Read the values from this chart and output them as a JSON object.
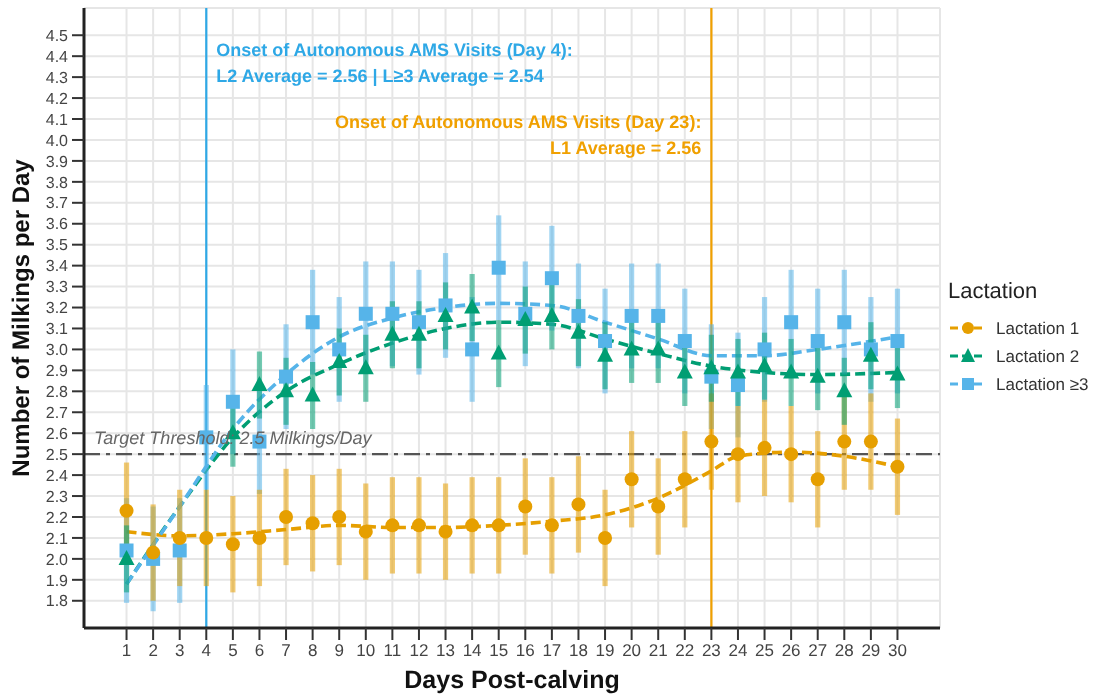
{
  "chart_data": {
    "type": "scatter",
    "xlabel": "Days Post-calving",
    "ylabel": "Number of Milkings per Day",
    "legend_title": "Lactation",
    "legend": "right",
    "grid": true,
    "x": [
      1,
      2,
      3,
      4,
      5,
      6,
      7,
      8,
      9,
      10,
      11,
      12,
      13,
      14,
      15,
      16,
      17,
      18,
      19,
      20,
      21,
      22,
      23,
      24,
      25,
      26,
      27,
      28,
      29,
      30
    ],
    "xlim": [
      -0.6,
      31.6
    ],
    "xticks": [
      1,
      2,
      3,
      4,
      5,
      6,
      7,
      8,
      9,
      10,
      11,
      12,
      13,
      14,
      15,
      16,
      17,
      18,
      19,
      20,
      21,
      22,
      23,
      24,
      25,
      26,
      27,
      28,
      29,
      30
    ],
    "ylim": [
      1.67,
      4.63
    ],
    "yticks": [
      1.8,
      1.9,
      {
        "value": 2,
        "label": "2.0"
      },
      2.1,
      2.2,
      2.3,
      2.4,
      2.5,
      2.6,
      2.7,
      2.8,
      2.9,
      {
        "value": 3,
        "label": "3.0"
      },
      3.1,
      3.2,
      3.3,
      3.4,
      3.5,
      3.6,
      3.7,
      3.8,
      3.9,
      {
        "value": 4,
        "label": "4.0"
      },
      4.1,
      4.2,
      4.3,
      4.4,
      4.5
    ],
    "series": [
      {
        "name": "Lactation 1",
        "marker": "circle",
        "color": "#e69f00",
        "values": [
          2.23,
          2.03,
          2.1,
          2.1,
          2.07,
          2.1,
          2.2,
          2.17,
          2.2,
          2.13,
          2.16,
          2.16,
          2.13,
          2.16,
          2.16,
          2.25,
          2.16,
          2.26,
          2.1,
          2.38,
          2.25,
          2.38,
          2.56,
          2.5,
          2.53,
          2.5,
          2.38,
          2.56,
          2.56,
          2.44
        ],
        "errors": [
          0.23,
          0.23,
          0.23,
          0.23,
          0.23,
          0.23,
          0.23,
          0.23,
          0.23,
          0.23,
          0.23,
          0.23,
          0.23,
          0.23,
          0.23,
          0.23,
          0.23,
          0.23,
          0.23,
          0.23,
          0.23,
          0.23,
          0.23,
          0.23,
          0.23,
          0.23,
          0.23,
          0.23,
          0.23,
          0.23
        ]
      },
      {
        "name": "Lactation 2",
        "marker": "triangle",
        "color": "#009e73",
        "values": [
          2.0,
          null,
          null,
          null,
          2.6,
          2.83,
          2.8,
          2.78,
          2.94,
          2.91,
          3.07,
          3.07,
          3.16,
          3.2,
          2.98,
          3.14,
          3.16,
          3.08,
          2.97,
          3.0,
          3.0,
          2.89,
          2.91,
          2.89,
          2.92,
          2.89,
          2.87,
          2.8,
          2.97,
          2.88
        ],
        "errors": [
          0.16,
          null,
          null,
          null,
          0.16,
          0.16,
          0.16,
          0.16,
          0.16,
          0.16,
          0.16,
          0.16,
          0.16,
          0.16,
          0.16,
          0.16,
          0.16,
          0.16,
          0.16,
          0.16,
          0.16,
          0.16,
          0.16,
          0.16,
          0.16,
          0.16,
          0.16,
          0.16,
          0.16,
          0.16
        ]
      },
      {
        "name": "Lactation ≥3",
        "marker": "square",
        "color": "#56b4e9",
        "values": [
          2.04,
          2.0,
          2.04,
          2.58,
          2.75,
          2.56,
          2.87,
          3.13,
          3.0,
          3.17,
          3.17,
          3.13,
          3.21,
          3.0,
          3.39,
          3.17,
          3.34,
          3.16,
          3.04,
          3.16,
          3.16,
          3.04,
          2.87,
          2.83,
          3.0,
          3.13,
          3.04,
          3.13,
          3.0,
          3.04
        ],
        "errors": [
          0.25,
          0.25,
          0.25,
          0.25,
          0.25,
          0.25,
          0.25,
          0.25,
          0.25,
          0.25,
          0.25,
          0.25,
          0.25,
          0.25,
          0.25,
          0.25,
          0.25,
          0.25,
          0.25,
          0.25,
          0.25,
          0.25,
          0.25,
          0.25,
          0.25,
          0.25,
          0.25,
          0.25,
          0.25,
          0.25
        ]
      },
      {
        "type": "line",
        "line_style": "dashed",
        "marker": "none",
        "color": "#e69f00",
        "x": [
          1,
          3,
          5,
          7,
          9,
          11,
          13,
          15,
          17,
          19,
          21,
          23,
          24,
          26,
          28,
          30
        ],
        "values": [
          2.13,
          2.11,
          2.12,
          2.14,
          2.16,
          2.15,
          2.15,
          2.16,
          2.18,
          2.21,
          2.29,
          2.42,
          2.49,
          2.51,
          2.49,
          2.44
        ]
      },
      {
        "type": "line",
        "line_style": "dashed",
        "marker": "none",
        "color": "#009e73",
        "x": [
          1,
          3,
          5,
          7,
          9,
          11,
          13,
          15,
          17,
          19,
          21,
          23,
          25,
          27,
          30
        ],
        "values": [
          1.88,
          2.25,
          2.58,
          2.8,
          2.93,
          3.03,
          3.1,
          3.13,
          3.12,
          3.05,
          2.98,
          2.92,
          2.89,
          2.88,
          2.89
        ]
      },
      {
        "type": "line",
        "line_style": "dashed",
        "marker": "none",
        "color": "#56b4e9",
        "x": [
          1,
          3,
          5,
          7,
          9,
          11,
          13,
          15,
          17,
          19,
          21,
          23,
          25,
          27,
          30
        ],
        "values": [
          1.88,
          2.25,
          2.62,
          2.88,
          3.06,
          3.15,
          3.2,
          3.22,
          3.21,
          3.13,
          3.05,
          2.97,
          2.97,
          3.0,
          3.06
        ]
      }
    ],
    "ref_lines": [
      {
        "axis": "x",
        "value": 4,
        "color": "#2ea8e6",
        "line_style": "solid",
        "label": "Onset of Autonomous AMS Visits (Day 4):\nL2 Average = 2.56 | L≥3 Average = 2.54"
      },
      {
        "axis": "x",
        "value": 23,
        "color": "#f0a000",
        "line_style": "solid",
        "label": "Onset of Autonomous AMS Visits (Day 23):\nL1 Average = 2.56"
      },
      {
        "axis": "y",
        "value": 2.5,
        "color": "#555555",
        "line_style": "dashdot",
        "label": "Target Threshold: 2.5 Milkings/Day"
      }
    ]
  }
}
